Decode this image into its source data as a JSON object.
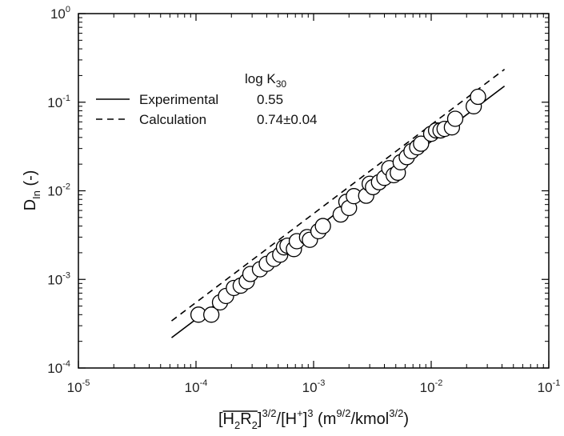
{
  "chart_data": {
    "type": "scatter",
    "x_scale": "log",
    "y_scale": "log",
    "xlim": [
      1e-05,
      0.1
    ],
    "ylim": [
      0.0001,
      1
    ],
    "grid": false,
    "x_ticks": [
      {
        "base": "10",
        "exp": "-5",
        "value": 1e-05
      },
      {
        "base": "10",
        "exp": "-4",
        "value": 0.0001
      },
      {
        "base": "10",
        "exp": "-3",
        "value": 0.001
      },
      {
        "base": "10",
        "exp": "-2",
        "value": 0.01
      },
      {
        "base": "10",
        "exp": "-1",
        "value": 0.1
      }
    ],
    "y_ticks": [
      {
        "base": "10",
        "exp": "-4",
        "value": 0.0001
      },
      {
        "base": "10",
        "exp": "-3",
        "value": 0.001
      },
      {
        "base": "10",
        "exp": "-2",
        "value": 0.01
      },
      {
        "base": "10",
        "exp": "-1",
        "value": 0.1
      },
      {
        "base": "10",
        "exp": "0",
        "value": 1
      }
    ],
    "xlabel": {
      "bracket_open": "[",
      "species": "H",
      "sub1": "2",
      "species2": "R",
      "sub2": "2",
      "bracket_close": "]",
      "exp1": "3/2",
      "mid": "/[H",
      "ion_charge": "+",
      "mid_close": "]",
      "exp2": "3",
      "unit_open": " (m",
      "unit_exp1": "9/2",
      "unit_mid": "/kmol",
      "unit_exp2": "3/2",
      "unit_close": ")"
    },
    "ylabel": {
      "main": "D",
      "sub": "In",
      "suffix": "  (-)"
    },
    "legend": {
      "placement": "top-left",
      "header_main": "log K",
      "header_sub": "30",
      "entries": [
        {
          "label": "Experimental",
          "value": "0.55",
          "style": "solid"
        },
        {
          "label": "Calculation",
          "value": "0.74±0.04",
          "style": "dashed"
        }
      ]
    },
    "lines": [
      {
        "label": "Experimental",
        "style": "solid",
        "x": [
          6.2e-05,
          0.042
        ],
        "y": [
          0.00022,
          0.152
        ]
      },
      {
        "label": "Calculation",
        "style": "dashed",
        "x": [
          6.2e-05,
          0.042
        ],
        "y": [
          0.00034,
          0.235
        ]
      }
    ],
    "points": {
      "x": [
        0.000105,
        0.000135,
        0.00016,
        0.00018,
        0.00021,
        0.00024,
        0.00027,
        0.00029,
        0.00035,
        0.0004,
        0.00046,
        0.00052,
        0.00056,
        0.0006,
        0.00068,
        0.00072,
        0.00088,
        0.00093,
        0.0011,
        0.0012,
        0.0017,
        0.0019,
        0.002,
        0.0022,
        0.0028,
        0.003,
        0.0032,
        0.0036,
        0.004,
        0.0044,
        0.0048,
        0.0052,
        0.0055,
        0.0062,
        0.0068,
        0.0076,
        0.0082,
        0.01,
        0.011,
        0.012,
        0.013,
        0.015,
        0.016,
        0.023,
        0.025
      ],
      "y": [
        0.0004,
        0.0004,
        0.00055,
        0.00065,
        0.0008,
        0.00085,
        0.00095,
        0.00115,
        0.0013,
        0.0015,
        0.0017,
        0.0019,
        0.0023,
        0.0024,
        0.0022,
        0.0027,
        0.003,
        0.0028,
        0.0035,
        0.004,
        0.0054,
        0.0075,
        0.0064,
        0.0087,
        0.0088,
        0.012,
        0.011,
        0.0125,
        0.014,
        0.018,
        0.015,
        0.016,
        0.021,
        0.024,
        0.028,
        0.031,
        0.034,
        0.044,
        0.048,
        0.048,
        0.05,
        0.052,
        0.065,
        0.09,
        0.115
      ]
    }
  }
}
